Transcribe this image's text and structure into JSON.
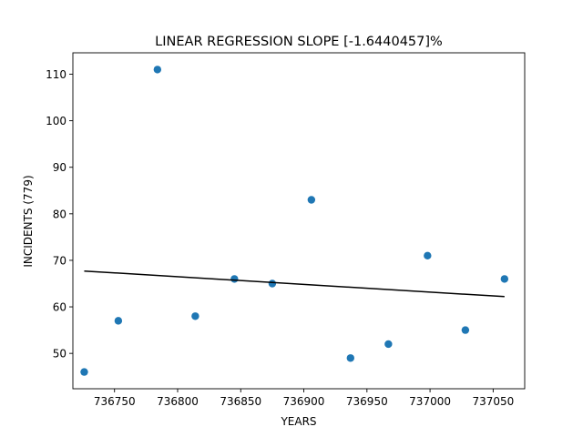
{
  "chart_data": {
    "type": "scatter",
    "title": "LINEAR REGRESSION SLOPE [-1.6440457]%",
    "xlabel": "YEARS",
    "ylabel": "INCIDENTS (779)",
    "xlim": [
      736717,
      737075
    ],
    "ylim": [
      42.4,
      114.6
    ],
    "xticks": [
      736750,
      736800,
      736850,
      736900,
      736950,
      737000,
      737050
    ],
    "yticks": [
      50,
      60,
      70,
      80,
      90,
      100,
      110
    ],
    "series": [
      {
        "kind": "scatter",
        "color": "#1f77b4",
        "points": [
          {
            "x": 736726,
            "y": 46
          },
          {
            "x": 736753,
            "y": 57
          },
          {
            "x": 736784,
            "y": 111
          },
          {
            "x": 736814,
            "y": 58
          },
          {
            "x": 736845,
            "y": 66
          },
          {
            "x": 736875,
            "y": 65
          },
          {
            "x": 736906,
            "y": 83
          },
          {
            "x": 736937,
            "y": 49
          },
          {
            "x": 736967,
            "y": 52
          },
          {
            "x": 736998,
            "y": 71
          },
          {
            "x": 737028,
            "y": 55
          },
          {
            "x": 737059,
            "y": 66
          }
        ]
      },
      {
        "kind": "line",
        "color": "#000000",
        "points": [
          {
            "x": 736726,
            "y": 67.7
          },
          {
            "x": 737059,
            "y": 62.2
          }
        ]
      }
    ],
    "grid": false,
    "legend": "none"
  }
}
